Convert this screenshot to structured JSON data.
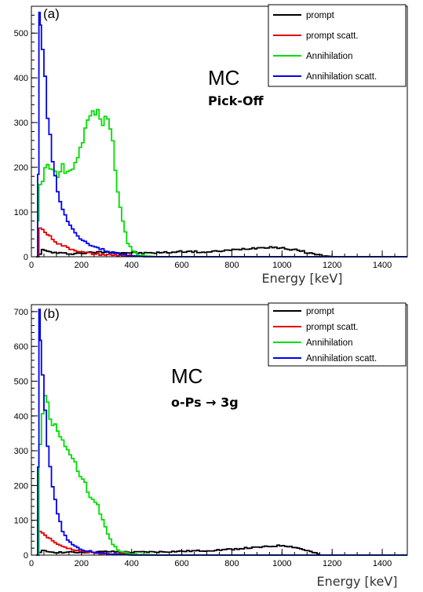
{
  "chart_data": [
    {
      "type": "line",
      "panel_label": "(a)",
      "title": "MC",
      "subtitle": "Pick-Off",
      "xlabel": "Energy [keV]",
      "ylabel": "",
      "xlim": [
        0,
        1500
      ],
      "ylim": [
        0,
        560
      ],
      "xticks": [
        "0",
        "200",
        "400",
        "600",
        "800",
        "1000",
        "1200",
        "1400"
      ],
      "yticks": [
        "0",
        "100",
        "200",
        "300",
        "400",
        "500"
      ],
      "legend": "top-right",
      "series": [
        {
          "name": "prompt",
          "color": "#000000",
          "x": [
            20,
            40,
            60,
            80,
            100,
            150,
            200,
            250,
            300,
            350,
            400,
            450,
            500,
            550,
            600,
            650,
            700,
            750,
            800,
            850,
            900,
            950,
            1000,
            1050,
            1100,
            1150,
            1200,
            1500
          ],
          "y": [
            0,
            15,
            12,
            10,
            8,
            7,
            8,
            10,
            11,
            9,
            9,
            8,
            9,
            10,
            12,
            11,
            10,
            13,
            15,
            18,
            20,
            22,
            19,
            15,
            9,
            3,
            0,
            0
          ]
        },
        {
          "name": "prompt scatt.",
          "color": "#e00000",
          "x": [
            20,
            30,
            40,
            60,
            80,
            100,
            150,
            200,
            250,
            300,
            350,
            400,
            500,
            1500
          ],
          "y": [
            0,
            65,
            60,
            50,
            40,
            30,
            18,
            10,
            6,
            4,
            3,
            2,
            0,
            0
          ]
        },
        {
          "name": "Annihilation",
          "color": "#00dd00",
          "x": [
            20,
            25,
            30,
            40,
            60,
            80,
            100,
            120,
            140,
            160,
            180,
            200,
            220,
            240,
            260,
            280,
            300,
            320,
            340,
            360,
            380,
            400,
            420,
            450,
            500,
            1500
          ],
          "y": [
            0,
            80,
            160,
            175,
            210,
            195,
            175,
            200,
            185,
            190,
            230,
            265,
            295,
            320,
            335,
            300,
            310,
            250,
            150,
            80,
            30,
            12,
            5,
            2,
            0,
            0
          ]
        },
        {
          "name": "Annihilation scatt.",
          "color": "#0000ee",
          "x": [
            20,
            25,
            30,
            35,
            40,
            50,
            60,
            80,
            100,
            120,
            140,
            160,
            180,
            200,
            250,
            300,
            350,
            400,
            450,
            1500
          ],
          "y": [
            0,
            180,
            545,
            510,
            460,
            400,
            320,
            210,
            150,
            105,
            80,
            60,
            45,
            35,
            22,
            12,
            5,
            2,
            0,
            0
          ]
        }
      ]
    },
    {
      "type": "line",
      "panel_label": "(b)",
      "title": "MC",
      "subtitle": "o-Ps → 3g",
      "xlabel": "Energy [keV]",
      "ylabel": "",
      "xlim": [
        0,
        1500
      ],
      "ylim": [
        0,
        720
      ],
      "xticks": [
        "0",
        "200",
        "400",
        "600",
        "800",
        "1000",
        "1200",
        "1400"
      ],
      "yticks": [
        "0",
        "100",
        "200",
        "300",
        "400",
        "500",
        "600",
        "700"
      ],
      "legend": "top-right",
      "series": [
        {
          "name": "prompt",
          "color": "#000000",
          "x": [
            20,
            40,
            60,
            80,
            100,
            150,
            200,
            250,
            300,
            350,
            400,
            450,
            500,
            550,
            600,
            650,
            700,
            750,
            800,
            850,
            900,
            950,
            1000,
            1050,
            1100,
            1150,
            1500
          ],
          "y": [
            0,
            12,
            10,
            9,
            8,
            8,
            8,
            9,
            10,
            9,
            8,
            9,
            9,
            10,
            11,
            12,
            13,
            15,
            17,
            20,
            22,
            25,
            28,
            22,
            12,
            0,
            0
          ]
        },
        {
          "name": "prompt scatt.",
          "color": "#e00000",
          "x": [
            20,
            30,
            40,
            60,
            80,
            100,
            150,
            200,
            250,
            300,
            350,
            400,
            500,
            1500
          ],
          "y": [
            0,
            70,
            62,
            52,
            42,
            30,
            18,
            10,
            6,
            4,
            3,
            2,
            0,
            0
          ]
        },
        {
          "name": "Annihilation",
          "color": "#00dd00",
          "x": [
            20,
            30,
            40,
            50,
            60,
            80,
            100,
            120,
            140,
            160,
            180,
            200,
            220,
            240,
            260,
            280,
            300,
            320,
            340,
            360,
            380,
            400,
            450,
            500,
            1500
          ],
          "y": [
            0,
            320,
            400,
            470,
            430,
            380,
            355,
            320,
            300,
            275,
            250,
            220,
            185,
            160,
            140,
            100,
            60,
            30,
            15,
            8,
            5,
            3,
            2,
            0,
            0
          ]
        },
        {
          "name": "Annihilation scatt.",
          "color": "#0000ee",
          "x": [
            20,
            25,
            30,
            35,
            40,
            50,
            60,
            80,
            100,
            120,
            140,
            160,
            180,
            200,
            250,
            300,
            350,
            400,
            1500
          ],
          "y": [
            0,
            250,
            700,
            600,
            520,
            420,
            320,
            200,
            120,
            70,
            45,
            30,
            20,
            15,
            8,
            4,
            2,
            0,
            0
          ]
        }
      ]
    }
  ]
}
